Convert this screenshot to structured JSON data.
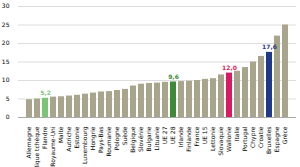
{
  "chart_data": {
    "type": "bar",
    "categories": [
      "Allemagne",
      "République tchèque",
      "Flandre",
      "Royaume-Uni",
      "Malte",
      "Autriche",
      "Estonie",
      "Luxembourg",
      "Hongrie",
      "Pays-Bas",
      "Roumanie",
      "Pologne",
      "Suède",
      "Belgique",
      "Slovénie",
      "Bulgarie",
      "Lituanie",
      "UE 27",
      "UE 28",
      "Irlande",
      "Finlande",
      "France",
      "UE 15",
      "Lettonie",
      "Slovaquie",
      "Wallonie",
      "Italie",
      "Portugal",
      "Chypre",
      "Croatie",
      "Bruxelles",
      "Espagne",
      "Grèce"
    ],
    "values": [
      4.8,
      5.0,
      5.2,
      5.5,
      5.6,
      5.8,
      6.0,
      6.3,
      6.6,
      6.9,
      7.0,
      7.3,
      7.6,
      8.5,
      9.0,
      9.2,
      9.3,
      9.5,
      9.6,
      9.7,
      9.8,
      10.0,
      10.3,
      10.5,
      11.5,
      12.0,
      12.5,
      13.5,
      15.0,
      16.5,
      17.6,
      22.0,
      25.0
    ],
    "value_labels": [
      null,
      null,
      "5,2",
      null,
      null,
      null,
      null,
      null,
      null,
      null,
      null,
      null,
      null,
      null,
      null,
      null,
      null,
      null,
      "9,6",
      null,
      null,
      null,
      null,
      null,
      null,
      "12,0",
      null,
      null,
      null,
      null,
      "17,6",
      null,
      null
    ],
    "data_labels": true,
    "colors": [
      "#a8a58c",
      "#a8a58c",
      "#7cc576",
      "#a8a58c",
      "#a8a58c",
      "#a8a58c",
      "#a8a58c",
      "#a8a58c",
      "#a8a58c",
      "#a8a58c",
      "#a8a58c",
      "#a8a58c",
      "#a8a58c",
      "#a8a58c",
      "#a8a58c",
      "#a8a58c",
      "#a8a58c",
      "#a8a58c",
      "#3d8b37",
      "#a8a58c",
      "#a8a58c",
      "#a8a58c",
      "#a8a58c",
      "#a8a58c",
      "#a8a58c",
      "#d81b60",
      "#a8a58c",
      "#a8a58c",
      "#a8a58c",
      "#a8a58c",
      "#1f3a8a",
      "#a8a58c",
      "#a8a58c"
    ],
    "ylim": [
      0,
      30
    ],
    "yticks": [
      0,
      5,
      10,
      15,
      20,
      25,
      30
    ],
    "grid": true
  }
}
